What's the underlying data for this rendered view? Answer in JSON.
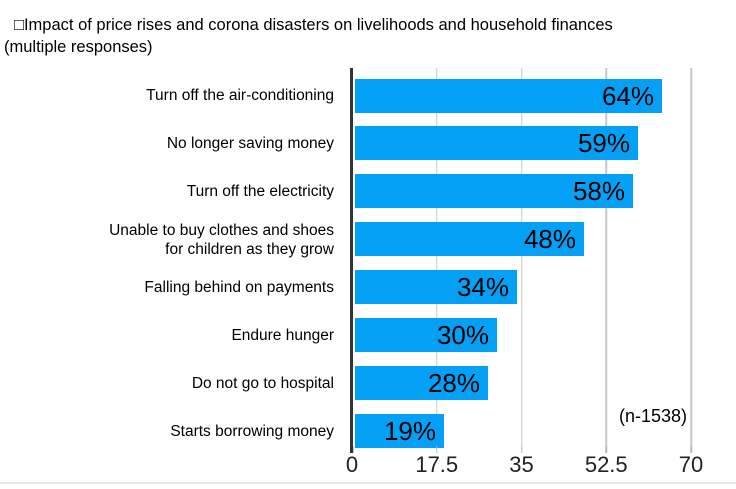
{
  "chart_data": {
    "type": "bar",
    "orientation": "horizontal",
    "title": "□Impact of price rises and corona disasters on livelihoods and household finances",
    "subtitle": "(multiple responses)",
    "categories": [
      "Turn off the air-conditioning",
      "No longer saving money",
      "Turn off the electricity",
      "Unable to buy clothes and shoes\nfor children as they grow",
      "Falling behind on payments",
      "Endure hunger",
      "Do not go to hospital",
      "Starts borrowing money"
    ],
    "values": [
      64,
      59,
      58,
      48,
      34,
      30,
      28,
      19
    ],
    "value_labels": [
      "64%",
      "59%",
      "58%",
      "48%",
      "34%",
      "30%",
      "28%",
      "19%"
    ],
    "xlabel": "",
    "ylabel": "",
    "xlim": [
      0,
      70
    ],
    "xticks": [
      0,
      17.5,
      35,
      52.5,
      70
    ],
    "xtick_labels": [
      "0",
      "17.5",
      "35",
      "52.5",
      "70"
    ],
    "grid": true,
    "legend": false,
    "annotation": "(n-1538)"
  },
  "colors": {
    "bar": "#04a0f5",
    "gridline": "#c7c7c7",
    "axis": "#333333",
    "tick": "#b9b9b9",
    "text": "#000000",
    "bottom_rule": "#e7e7e7"
  }
}
